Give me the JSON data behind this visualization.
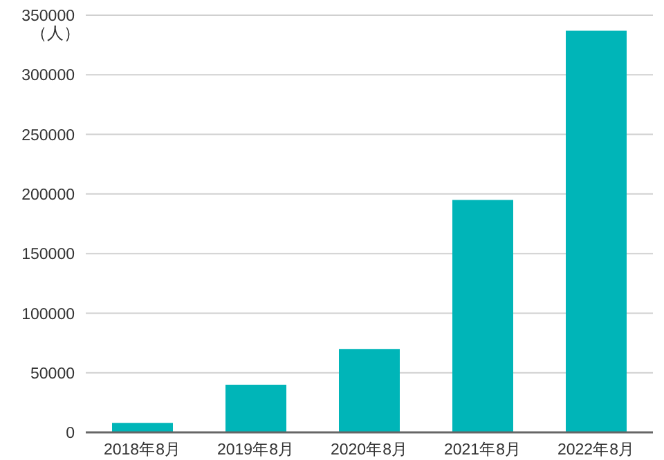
{
  "chart_data": {
    "type": "bar",
    "ylabel": "（人）",
    "categories": [
      "2018年8月",
      "2019年8月",
      "2020年8月",
      "2021年8月",
      "2022年8月"
    ],
    "values": [
      8000,
      40000,
      70000,
      195000,
      337000
    ],
    "color": "#00b5b8",
    "ylim": [
      0,
      350000
    ],
    "yticks": [
      0,
      50000,
      100000,
      150000,
      200000,
      250000,
      300000,
      350000
    ],
    "grid": "y"
  }
}
